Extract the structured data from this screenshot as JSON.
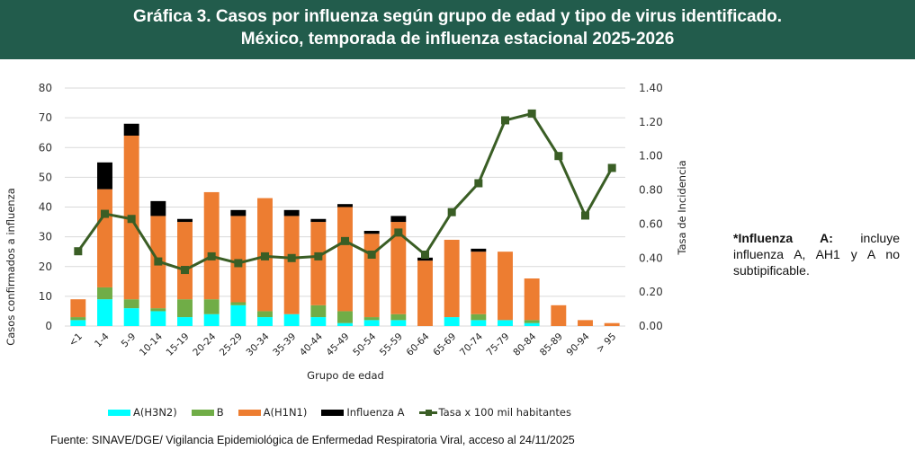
{
  "header": {
    "title_line1": "Gráfica 3. Casos por influenza según grupo de edad y tipo de virus identificado.",
    "title_line2": "México, temporada de influenza estacional 2025-2026"
  },
  "note": {
    "bold": "*Influenza A:",
    "text": " incluye influenza A, AH1 y A no subtipificable."
  },
  "source": "Fuente: SINAVE/DGE/ Vigilancia Epidemiológica de Enfermedad Respiratoria Viral, acceso al 24/11/2025",
  "colors": {
    "header_bg": "#225c4c",
    "h3n2": "#00ffff",
    "b": "#70ad47",
    "h1n1": "#ed7d31",
    "influenza_a": "#000000",
    "rate_line": "#3a5e25",
    "grid": "#d9d9d9"
  },
  "chart_data": {
    "type": "bar",
    "stacked": true,
    "title": "Gráfica 3. Casos por influenza según grupo de edad y tipo de virus identificado. México, temporada de influenza estacional 2025-2026",
    "xlabel": "Grupo de edad",
    "ylabel": "Casos confirmados a influenza",
    "y2label": "Tasa de Incidencia",
    "ylim": [
      0,
      80
    ],
    "yticks": [
      "0",
      "10",
      "20",
      "30",
      "40",
      "50",
      "60",
      "70",
      "80"
    ],
    "y2lim": [
      0,
      1.4
    ],
    "y2ticks": [
      "0.00",
      "0.20",
      "0.40",
      "0.60",
      "0.80",
      "1.00",
      "1.20",
      "1.40"
    ],
    "grid": true,
    "legend_position": "bottom",
    "categories": [
      "<1",
      "1-4",
      "5-9",
      "10-14",
      "15-19",
      "20-24",
      "25-29",
      "30-34",
      "35-39",
      "40-44",
      "45-49",
      "50-54",
      "55-59",
      "60-64",
      "65-69",
      "70-74",
      "75-79",
      "80-84",
      "85-89",
      "90-94",
      "> 95"
    ],
    "series": [
      {
        "name": "A(H3N2)",
        "key": "h3n2",
        "values": [
          2,
          9,
          6,
          5,
          3,
          4,
          7,
          3,
          4,
          3,
          1,
          2,
          2,
          0,
          3,
          2,
          2,
          1,
          0,
          0,
          0
        ]
      },
      {
        "name": "B",
        "key": "b",
        "values": [
          1,
          4,
          3,
          1,
          6,
          5,
          1,
          2,
          0,
          4,
          4,
          1,
          2,
          0,
          0,
          2,
          0,
          1,
          0,
          0,
          0
        ]
      },
      {
        "name": "A(H1N1)",
        "key": "h1n1",
        "values": [
          6,
          33,
          55,
          31,
          26,
          36,
          29,
          38,
          33,
          28,
          35,
          28,
          31,
          22,
          26,
          21,
          23,
          14,
          7,
          2,
          1
        ]
      },
      {
        "name": "Influenza A",
        "key": "influenza_a",
        "values": [
          0,
          9,
          4,
          5,
          1,
          0,
          2,
          0,
          2,
          1,
          1,
          1,
          2,
          1,
          0,
          1,
          0,
          0,
          0,
          0,
          0
        ]
      }
    ],
    "line_series": {
      "name": "Tasa x 100 mil habitantes",
      "axis": "secondary",
      "values": [
        0.44,
        0.66,
        0.63,
        0.38,
        0.33,
        0.41,
        0.37,
        0.41,
        0.4,
        0.41,
        0.5,
        0.42,
        0.55,
        0.42,
        0.67,
        0.84,
        1.21,
        1.25,
        1.0,
        0.65,
        0.93
      ]
    }
  }
}
